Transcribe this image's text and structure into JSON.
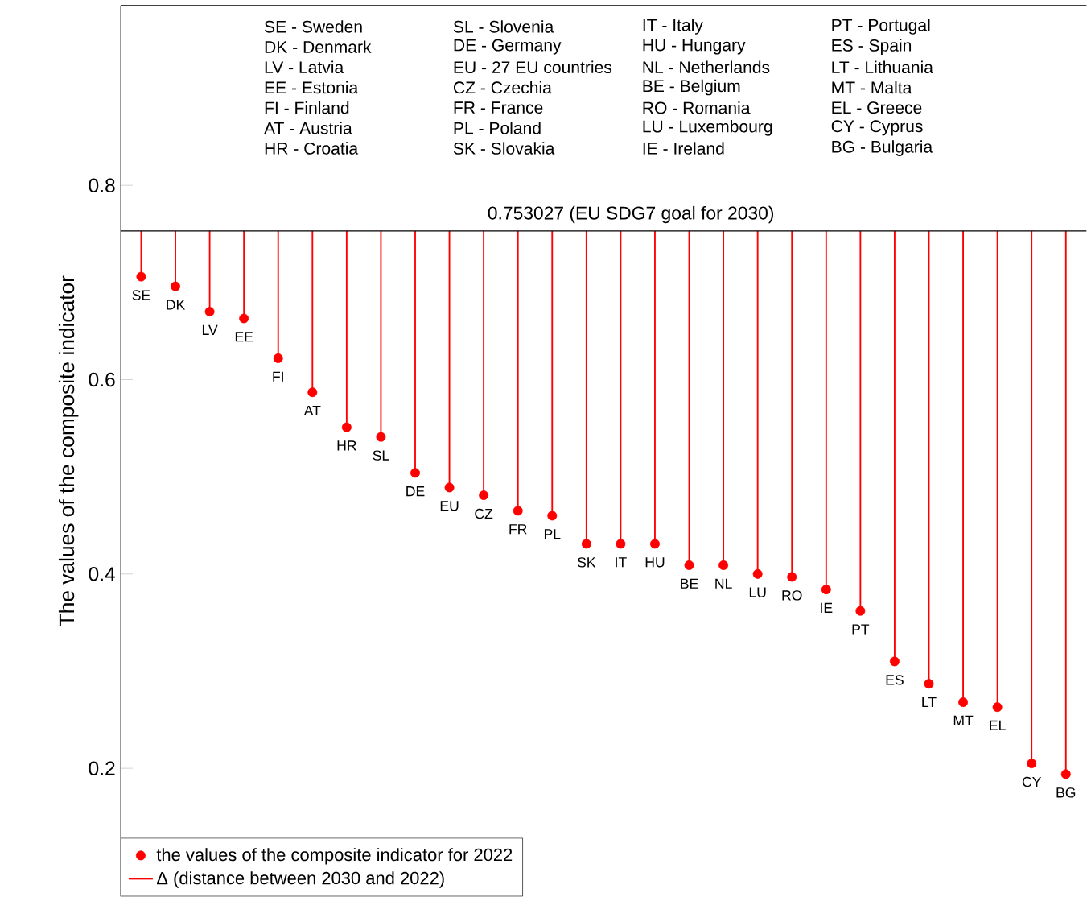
{
  "chart_data": {
    "type": "scatter",
    "ylabel": "The values of the composite indicator",
    "categories": [
      "SE",
      "DK",
      "LV",
      "EE",
      "FI",
      "AT",
      "HR",
      "SL",
      "DE",
      "EU",
      "CZ",
      "FR",
      "PL",
      "SK",
      "IT",
      "HU",
      "BE",
      "NL",
      "LU",
      "RO",
      "IE",
      "PT",
      "ES",
      "LT",
      "MT",
      "EL",
      "CY",
      "BG"
    ],
    "series": [
      {
        "name": "the values of the composite indicator for 2022",
        "color": "#ff0000",
        "values": [
          0.706,
          0.696,
          0.67,
          0.663,
          0.622,
          0.587,
          0.551,
          0.541,
          0.504,
          0.489,
          0.481,
          0.465,
          0.46,
          0.431,
          0.431,
          0.431,
          0.409,
          0.409,
          0.4,
          0.397,
          0.384,
          0.362,
          0.31,
          0.287,
          0.268,
          0.263,
          0.205,
          0.194
        ]
      },
      {
        "name": "Δ (distance between 2030 and 2022)",
        "type": "bar",
        "color": "#ff0000",
        "base": [
          0.706,
          0.696,
          0.67,
          0.663,
          0.622,
          0.587,
          0.551,
          0.541,
          0.504,
          0.489,
          0.481,
          0.465,
          0.46,
          0.431,
          0.431,
          0.431,
          0.409,
          0.409,
          0.4,
          0.397,
          0.384,
          0.362,
          0.31,
          0.287,
          0.268,
          0.263,
          0.205,
          0.194
        ],
        "values": [
          0.047,
          0.057,
          0.083,
          0.09,
          0.131,
          0.166,
          0.202,
          0.212,
          0.249,
          0.264,
          0.272,
          0.288,
          0.293,
          0.322,
          0.322,
          0.322,
          0.344,
          0.344,
          0.353,
          0.356,
          0.369,
          0.391,
          0.443,
          0.466,
          0.485,
          0.49,
          0.548,
          0.559
        ]
      }
    ],
    "ylim": [
      0.068,
      0.985
    ],
    "yticks": [
      0.2,
      0.4,
      0.6,
      0.8
    ],
    "tick_labels": "y",
    "legend": "bottom left",
    "ref_lines": [
      {
        "axis": "y",
        "value": 0.753027,
        "label": "0.753027 (EU SDG7 goal for 2030)",
        "color": "#000000"
      }
    ],
    "annotations": [
      "SE - Sweden",
      "DK - Denmark",
      "LV - Latvia",
      "EE - Estonia",
      "FI - Finland",
      "AT - Austria",
      "HR - Croatia",
      "SL - Slovenia",
      "DE - Germany",
      "EU - 27 EU countries",
      "CZ - Czechia",
      "FR - France",
      "PL - Poland",
      "SK - Slovakia",
      "IT - Italy",
      "HU - Hungary",
      "NL - Netherlands",
      "BE - Belgium",
      "RO - Romania",
      "LU - Luxembourg",
      "IE - Ireland",
      "PT - Portugal",
      "ES - Spain",
      "LT - Lithuania",
      "MT - Malta",
      "EL - Greece",
      "CY - Cyprus",
      "BG - Bulgaria"
    ]
  }
}
